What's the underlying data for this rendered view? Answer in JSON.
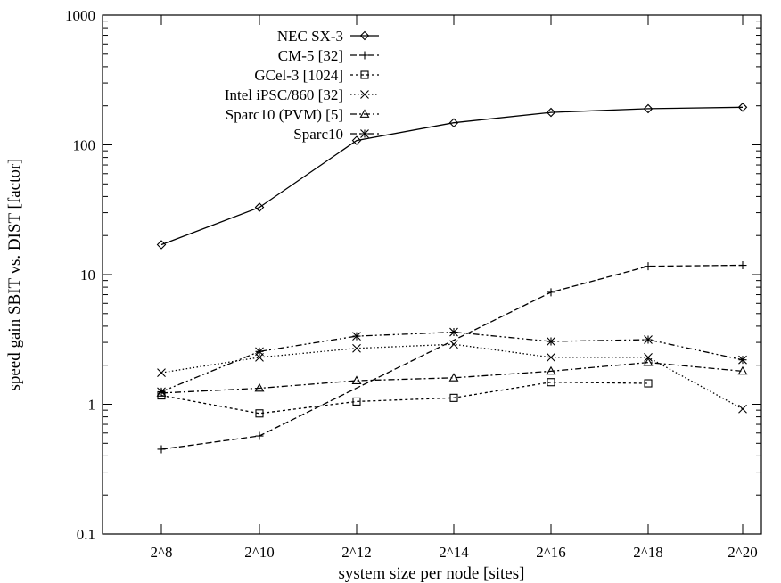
{
  "chart_data": {
    "type": "line",
    "title": "",
    "xlabel": "system size per node [sites]",
    "ylabel": "speed gain SBIT vs. DIST [factor]",
    "yscale": "log",
    "ylim": [
      0.1,
      1000
    ],
    "y_ticks": [
      {
        "value": 0.1,
        "label": "0.1"
      },
      {
        "value": 1,
        "label": "1"
      },
      {
        "value": 10,
        "label": "10"
      },
      {
        "value": 100,
        "label": "100"
      },
      {
        "value": 1000,
        "label": "1000"
      }
    ],
    "categories": [
      "2^8",
      "2^10",
      "2^12",
      "2^14",
      "2^16",
      "2^18",
      "2^20"
    ],
    "grid": false,
    "legend_position": "top-left",
    "series": [
      {
        "name": "NEC SX-3",
        "marker": "diamond",
        "dash": "solid",
        "values": [
          17,
          33,
          108,
          148,
          178,
          190,
          195
        ]
      },
      {
        "name": "CM-5 [32]",
        "marker": "plus",
        "dash": "dashed",
        "values": [
          0.45,
          0.57,
          null,
          null,
          7.3,
          11.6,
          11.8
        ]
      },
      {
        "name": "GCel-3 [1024]",
        "marker": "square",
        "dash": "dotted",
        "values": [
          1.17,
          0.85,
          1.05,
          1.12,
          1.48,
          1.45,
          null
        ]
      },
      {
        "name": "Intel iPSC/860 [32]",
        "marker": "cross",
        "dash": "finedotted",
        "values": [
          1.75,
          2.3,
          2.7,
          2.9,
          2.3,
          2.3,
          0.92
        ]
      },
      {
        "name": "Sparc10 (PVM) [5]",
        "marker": "triangle",
        "dash": "dashdot",
        "values": [
          1.22,
          1.33,
          1.52,
          1.6,
          1.8,
          2.1,
          1.8
        ]
      },
      {
        "name": "Sparc10",
        "marker": "star",
        "dash": "dashdotdot",
        "values": [
          1.25,
          2.55,
          3.35,
          3.6,
          3.05,
          3.15,
          2.2
        ]
      }
    ]
  }
}
